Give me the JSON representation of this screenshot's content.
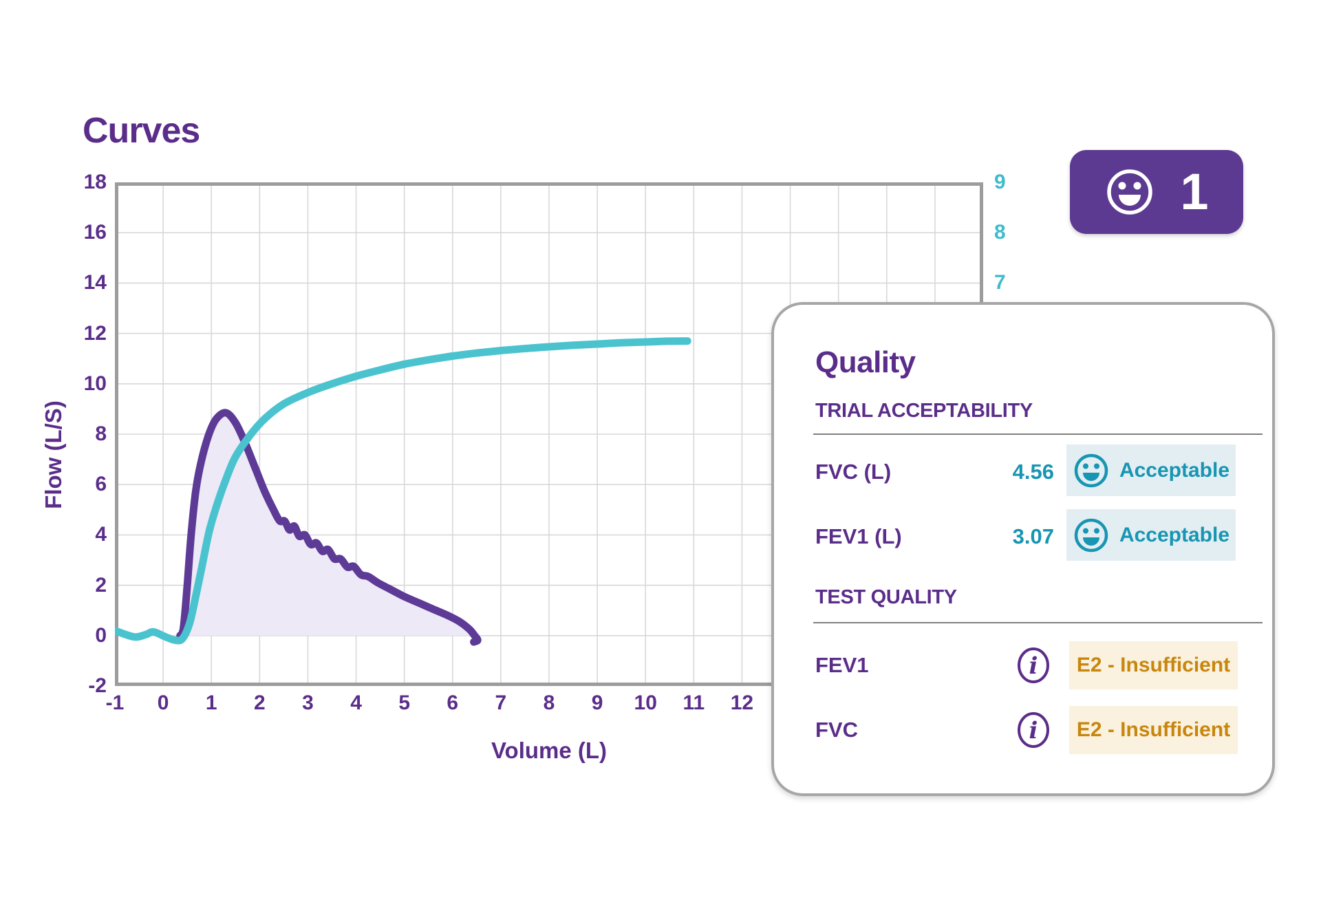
{
  "header": {
    "title": "Curves"
  },
  "badge": {
    "count": "1",
    "icon": "smiley-face",
    "color": "#5C3A92"
  },
  "chart": {
    "x_label": "Volume (L)",
    "y_label": "Flow (L/S)",
    "x_ticks": [
      -1,
      0,
      1,
      2,
      3,
      4,
      5,
      6,
      7,
      8,
      9,
      10,
      11,
      12
    ],
    "y_ticks": [
      18,
      16,
      14,
      12,
      10,
      8,
      6,
      4,
      2,
      0,
      -2
    ],
    "right_ticks": [
      9,
      8,
      7
    ]
  },
  "chart_data": {
    "type": "line",
    "title": "Curves",
    "xlabel": "Volume (L)",
    "ylabel": "Flow (L/S)",
    "xlim": [
      -1,
      17
    ],
    "ylim": [
      -2,
      18
    ],
    "grid": true,
    "x_tick_step": 1,
    "y_tick_step": 2,
    "right_axis_ticks": [
      9,
      8,
      7
    ],
    "series": [
      {
        "name": "flow-volume-loop",
        "color": "#5C3A96",
        "fill": "#EDE9F6",
        "peak_flow": 8.85,
        "end_volume": 6.5,
        "points": [
          [
            0.35,
            0
          ],
          [
            0.42,
            0.3
          ],
          [
            0.5,
            2
          ],
          [
            0.58,
            4
          ],
          [
            0.68,
            5.8
          ],
          [
            0.8,
            7
          ],
          [
            0.95,
            8
          ],
          [
            1.1,
            8.6
          ],
          [
            1.3,
            8.85
          ],
          [
            1.5,
            8.45
          ],
          [
            1.7,
            7.65
          ],
          [
            1.9,
            6.7
          ],
          [
            2.1,
            5.75
          ],
          [
            2.3,
            4.95
          ],
          [
            2.42,
            4.55
          ],
          [
            2.52,
            4.55
          ],
          [
            2.62,
            4.2
          ],
          [
            2.72,
            4.35
          ],
          [
            2.82,
            3.95
          ],
          [
            2.94,
            4
          ],
          [
            3.06,
            3.62
          ],
          [
            3.18,
            3.68
          ],
          [
            3.3,
            3.35
          ],
          [
            3.42,
            3.42
          ],
          [
            3.55,
            3.05
          ],
          [
            3.68,
            3.05
          ],
          [
            3.82,
            2.72
          ],
          [
            3.95,
            2.75
          ],
          [
            4.1,
            2.42
          ],
          [
            4.25,
            2.35
          ],
          [
            4.45,
            2.1
          ],
          [
            4.7,
            1.85
          ],
          [
            5,
            1.55
          ],
          [
            5.3,
            1.3
          ],
          [
            5.6,
            1.05
          ],
          [
            5.9,
            0.8
          ],
          [
            6.15,
            0.55
          ],
          [
            6.35,
            0.25
          ],
          [
            6.45,
            0.02
          ],
          [
            6.52,
            -0.18
          ],
          [
            6.44,
            -0.25
          ]
        ]
      },
      {
        "name": "volume-time",
        "color": "#4BC3CF",
        "plateau": 11.7,
        "points": [
          [
            -1,
            0.2
          ],
          [
            -0.6,
            -0.05
          ],
          [
            -0.35,
            0.05
          ],
          [
            -0.2,
            0.15
          ],
          [
            0.05,
            -0.05
          ],
          [
            0.25,
            -0.18
          ],
          [
            0.4,
            -0.12
          ],
          [
            0.55,
            0.5
          ],
          [
            0.68,
            1.6
          ],
          [
            0.8,
            2.7
          ],
          [
            0.95,
            4.1
          ],
          [
            1.1,
            5.1
          ],
          [
            1.3,
            6.2
          ],
          [
            1.5,
            7.1
          ],
          [
            1.8,
            7.95
          ],
          [
            2.1,
            8.6
          ],
          [
            2.5,
            9.2
          ],
          [
            3,
            9.65
          ],
          [
            3.5,
            10
          ],
          [
            4,
            10.3
          ],
          [
            4.5,
            10.55
          ],
          [
            5,
            10.78
          ],
          [
            5.5,
            10.95
          ],
          [
            6,
            11.1
          ],
          [
            6.5,
            11.22
          ],
          [
            7,
            11.32
          ],
          [
            7.5,
            11.4
          ],
          [
            8,
            11.47
          ],
          [
            8.5,
            11.53
          ],
          [
            9,
            11.58
          ],
          [
            9.5,
            11.63
          ],
          [
            10,
            11.66
          ],
          [
            10.45,
            11.69
          ],
          [
            10.87,
            11.7
          ]
        ]
      }
    ]
  },
  "quality_panel": {
    "title": "Quality",
    "sections": [
      {
        "heading": "TRIAL ACCEPTABILITY",
        "rows": [
          {
            "label": "FVC (L)",
            "value": "4.56",
            "status": "Acceptable",
            "status_type": "acceptable",
            "icon": "smiley-face"
          },
          {
            "label": "FEV1 (L)",
            "value": "3.07",
            "status": "Acceptable",
            "status_type": "acceptable",
            "icon": "smiley-face"
          }
        ]
      },
      {
        "heading": "TEST QUALITY",
        "rows": [
          {
            "label": "FEV1",
            "status": "E2 - Insufficient",
            "status_type": "insufficient",
            "icon": "info"
          },
          {
            "label": "FVC",
            "status": "E2 - Insufficient",
            "status_type": "insufficient",
            "icon": "info"
          }
        ]
      }
    ]
  },
  "colors": {
    "brand_purple": "#5B2D8A",
    "curve_purple": "#5C3A96",
    "curve_fill": "#EDE9F6",
    "teal": "#4BC3CF",
    "teal_text": "#1795B3",
    "status_acceptable_bg": "#E3EEF2",
    "status_insufficient_bg": "#FAF1DE",
    "status_insufficient_text": "#C8860D",
    "gridline": "#D8D8D8",
    "chart_border": "#9C9C9C"
  }
}
